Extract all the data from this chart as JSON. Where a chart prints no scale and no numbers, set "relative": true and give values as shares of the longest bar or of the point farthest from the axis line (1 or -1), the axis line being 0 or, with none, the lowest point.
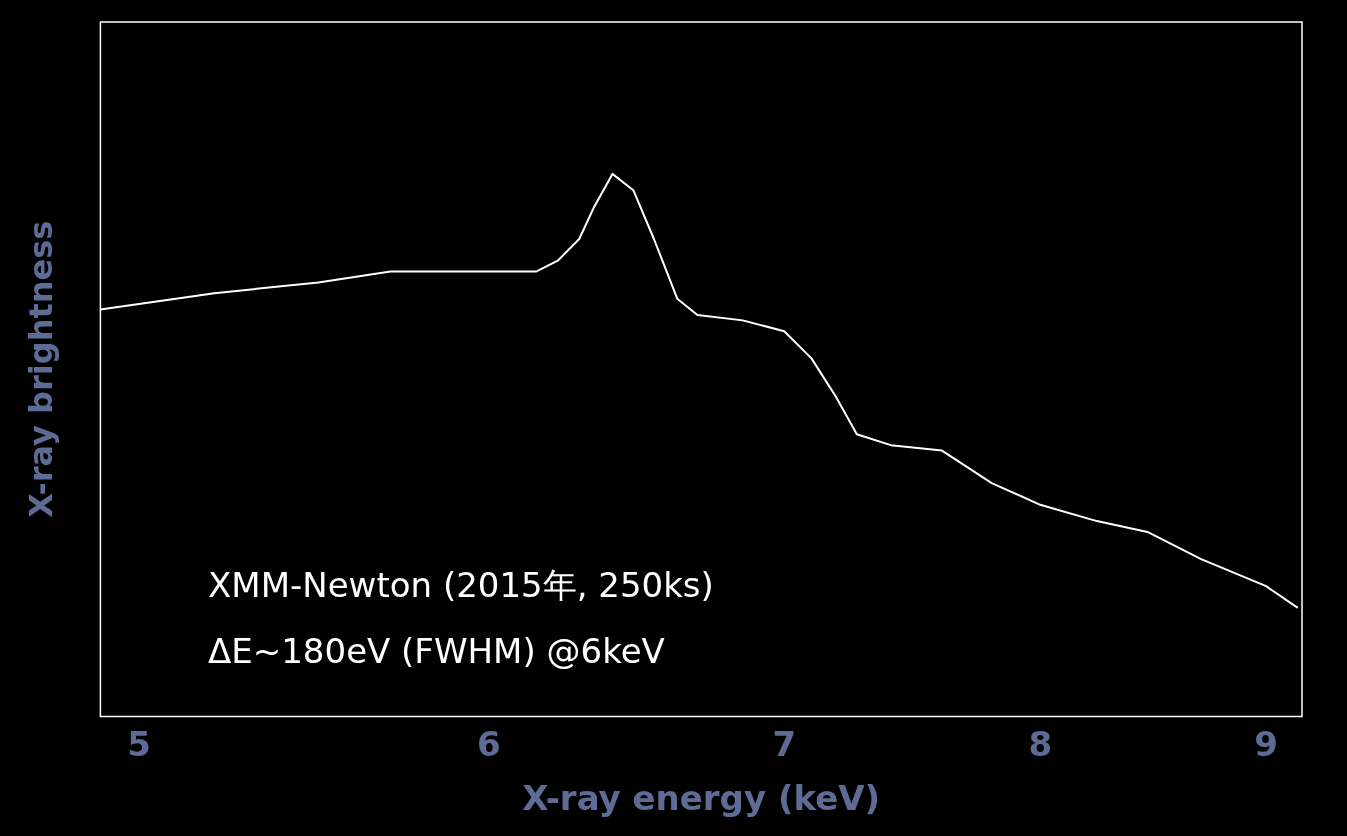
{
  "chart_data": {
    "type": "line",
    "xlabel": "X-ray energy (keV)",
    "ylabel": "X-ray brightness",
    "relative": true,
    "log": "x",
    "xlim": [
      4.9,
      9.17
    ],
    "xticks": [
      5,
      6,
      7,
      8,
      9
    ],
    "grid": false,
    "legend": false,
    "marker": "none",
    "line_style": "solid",
    "annotations": [
      "XMM-Newton (2015年, 250ks)",
      "ΔE~180eV (FWHM) @6keV"
    ],
    "series": [
      {
        "color": "#ffffff",
        "x": [
          4.9,
          5.2,
          5.49,
          5.7,
          6.0,
          6.15,
          6.22,
          6.29,
          6.34,
          6.4,
          6.47,
          6.54,
          6.62,
          6.69,
          6.85,
          7.0,
          7.1,
          7.19,
          7.27,
          7.4,
          7.6,
          7.8,
          8.0,
          8.24,
          8.46,
          8.7,
          9.0,
          9.15
        ],
        "values": [
          0.75,
          0.78,
          0.8,
          0.82,
          0.82,
          0.82,
          0.84,
          0.88,
          0.94,
          1,
          0.97,
          0.88,
          0.77,
          0.74,
          0.73,
          0.71,
          0.66,
          0.59,
          0.52,
          0.5,
          0.49,
          0.43,
          0.39,
          0.36,
          0.34,
          0.29,
          0.24,
          0.2
        ]
      }
    ]
  }
}
